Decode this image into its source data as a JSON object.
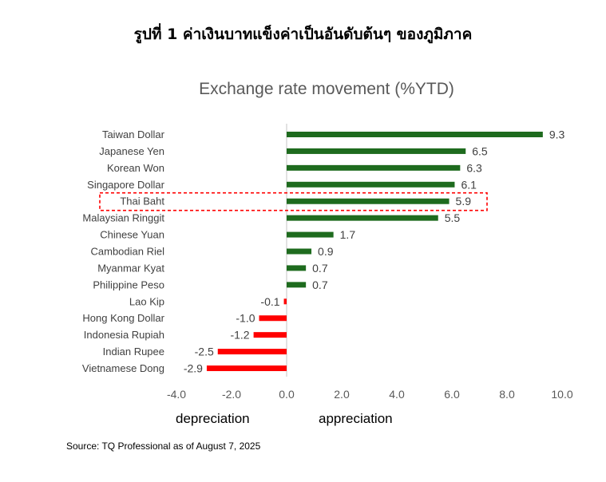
{
  "heading": "รูปที่ 1 ค่าเงินบาทแข็งค่าเป็นอันดับต้นๆ ของภูมิภาค",
  "source": "Source: TQ Professional as of August 7, 2025",
  "colors": {
    "positive": "#1e6b1e",
    "negative": "#ff0000",
    "highlight": "#ff0000"
  },
  "chart_data": {
    "type": "bar",
    "orientation": "horizontal",
    "title": "Exchange rate movement (%YTD)",
    "categories": [
      "Taiwan Dollar",
      "Japanese Yen",
      "Korean Won",
      "Singapore Dollar",
      "Thai Baht",
      "Malaysian Ringgit",
      "Chinese Yuan",
      "Cambodian Riel",
      "Myanmar Kyat",
      "Philippine Peso",
      "Lao Kip",
      "Hong Kong Dollar",
      "Indonesia Rupiah",
      "Indian Rupee",
      "Vietnamese Dong"
    ],
    "values": [
      9.3,
      6.5,
      6.3,
      6.1,
      5.9,
      5.5,
      1.7,
      0.9,
      0.7,
      0.7,
      -0.1,
      -1.0,
      -1.2,
      -2.5,
      -2.9
    ],
    "value_labels": [
      "9.3",
      "6.5",
      "6.3",
      "6.1",
      "5.9",
      "5.5",
      "1.7",
      "0.9",
      "0.7",
      "0.7",
      "-0.1",
      "-1.0",
      "-1.2",
      "-2.5",
      "-2.9"
    ],
    "xlim": [
      -4,
      10
    ],
    "xticks": [
      "-4.0",
      "-2.0",
      "0.0",
      "2.0",
      "4.0",
      "6.0",
      "8.0",
      "10.0"
    ],
    "highlight_category": "Thai Baht",
    "annotations": {
      "left": "depreciation",
      "right": "appreciation"
    },
    "grid": false,
    "legend": "none"
  }
}
